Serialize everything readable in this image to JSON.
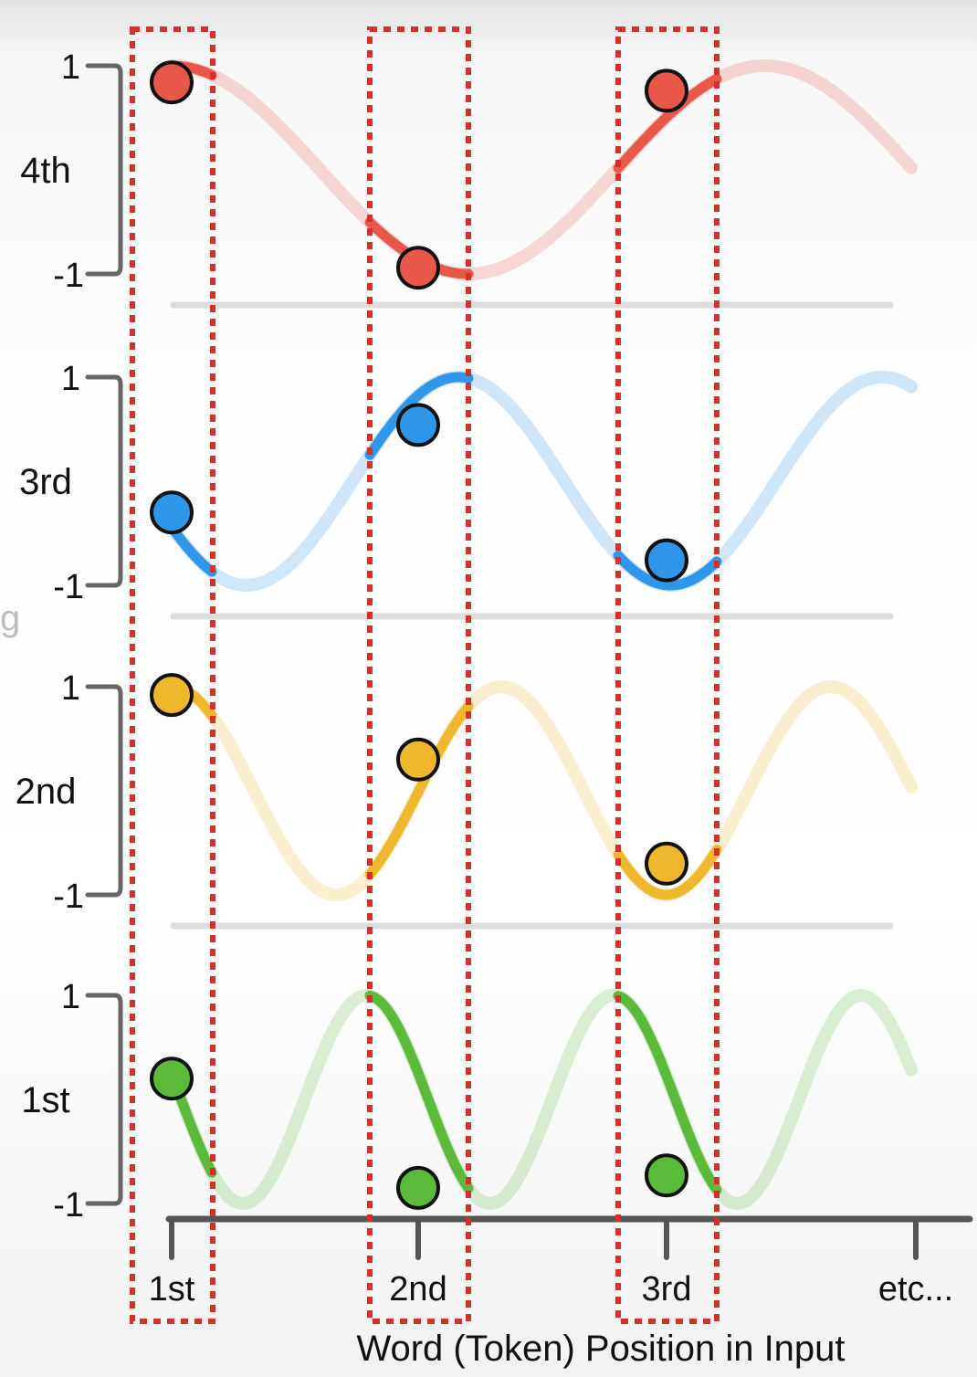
{
  "chart_data": {
    "type": "line",
    "title": "",
    "xlabel": "Word (Token) Position in Input",
    "x_tick_labels": [
      "1st",
      "2nd",
      "3rd",
      "etc..."
    ],
    "side_letter": "g",
    "ylim": [
      -1,
      1
    ],
    "y_tick_labels": {
      "top": "1",
      "bottom": "-1"
    },
    "panels": [
      {
        "name": "4th",
        "color": "#e8574a",
        "wave": {
          "cycles_over_axis": 1.25,
          "phase": 1.5708
        },
        "highlighted_positions": [
          1,
          2,
          3
        ],
        "values": [
          0.84,
          -0.94,
          0.76
        ]
      },
      {
        "name": "3rd",
        "color": "#2f96ea",
        "wave": {
          "cycles_over_axis": 1.75,
          "phase": 3.6
        },
        "highlighted_positions": [
          1,
          2,
          3
        ],
        "values": [
          -0.3,
          0.54,
          -0.76
        ]
      },
      {
        "name": "2nd",
        "color": "#efb72c",
        "wave": {
          "cycles_over_axis": 2.25,
          "phase": 1.5708
        },
        "highlighted_positions": [
          1,
          2,
          3
        ],
        "values": [
          0.92,
          0.3,
          -0.7
        ]
      },
      {
        "name": "1st",
        "color": "#5cba3a",
        "wave": {
          "cycles_over_axis": 3.0,
          "phase": 2.9
        },
        "highlighted_positions": [
          1,
          2,
          3
        ],
        "values": [
          0.2,
          -0.85,
          -0.73
        ]
      }
    ]
  }
}
